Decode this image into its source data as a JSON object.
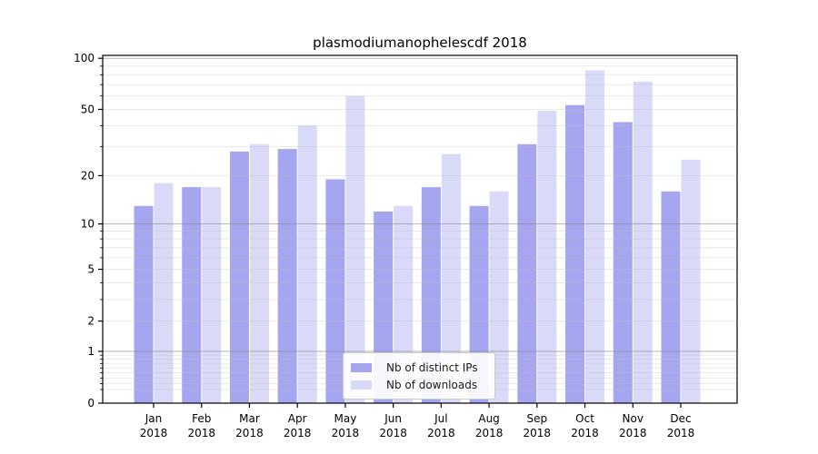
{
  "figure": {
    "background": "#ffffff"
  },
  "chart_data": {
    "type": "bar",
    "title": "plasmodiumanophelescdf 2018",
    "categories": [
      "Jan 2018",
      "Feb 2018",
      "Mar 2018",
      "Apr 2018",
      "May 2018",
      "Jun 2018",
      "Jul 2018",
      "Aug 2018",
      "Sep 2018",
      "Oct 2018",
      "Nov 2018",
      "Dec 2018"
    ],
    "series": [
      {
        "name": "Nb of distinct IPs",
        "color": "#a5a5f0",
        "values": [
          13,
          17,
          28,
          29,
          19,
          12,
          17,
          13,
          31,
          53,
          42,
          16
        ]
      },
      {
        "name": "Nb of downloads",
        "color": "#d9d9f8",
        "values": [
          18,
          17,
          31,
          40,
          60,
          13,
          27,
          16,
          49,
          85,
          73,
          25
        ]
      }
    ],
    "yscale": "log10(1+y)",
    "ylim": [
      0,
      104
    ],
    "ytick_values": [
      0,
      1,
      2,
      5,
      10,
      20,
      50,
      100
    ],
    "yticks_minor": [
      0.2,
      0.3,
      0.4,
      0.5,
      0.6,
      0.7,
      0.8,
      0.9,
      3,
      4,
      6,
      7,
      8,
      9,
      30,
      40,
      60,
      70,
      80,
      90
    ],
    "y_decade_lines": [
      1,
      10,
      100
    ],
    "xlabel": "",
    "ylabel": "",
    "grid": "horizontal",
    "legend_position": "lower center"
  }
}
